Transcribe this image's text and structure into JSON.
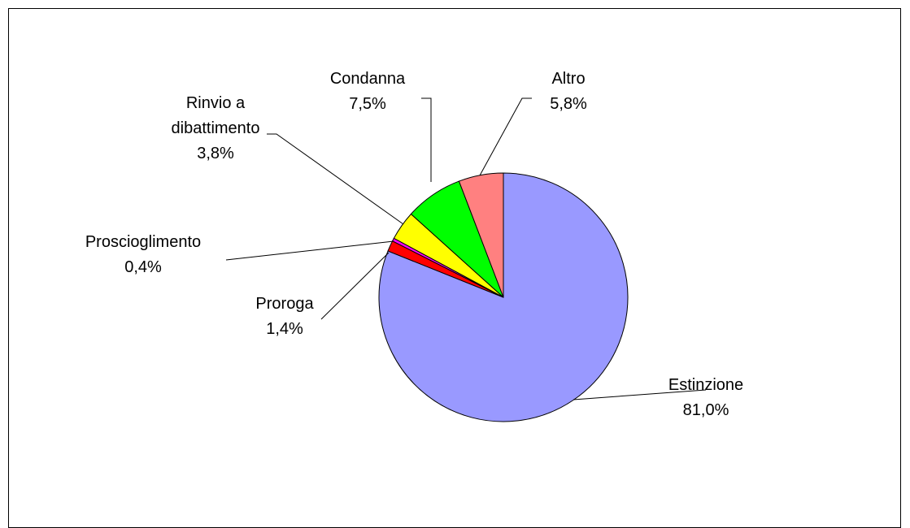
{
  "chart_data": {
    "type": "pie",
    "title": "",
    "slices": [
      {
        "name": "Estinzione",
        "value": 81.0,
        "label": "81,0%",
        "color": "#9999FF"
      },
      {
        "name": "Proroga",
        "value": 1.4,
        "label": "1,4%",
        "color": "#FF0000"
      },
      {
        "name": "Proscioglimento",
        "value": 0.4,
        "label": "0,4%",
        "color": "#FF00FF"
      },
      {
        "name": "Rinvio a dibattimento",
        "name_lines": [
          "Rinvio a",
          "dibattimento"
        ],
        "value": 3.8,
        "label": "3,8%",
        "color": "#FFFF00"
      },
      {
        "name": "Condanna",
        "value": 7.5,
        "label": "7,5%",
        "color": "#00FF00"
      },
      {
        "name": "Altro",
        "value": 5.8,
        "label": "5,8%",
        "color": "#FF8080"
      }
    ],
    "start_angle": "12 o'clock",
    "direction": "clockwise",
    "legend": "none"
  }
}
